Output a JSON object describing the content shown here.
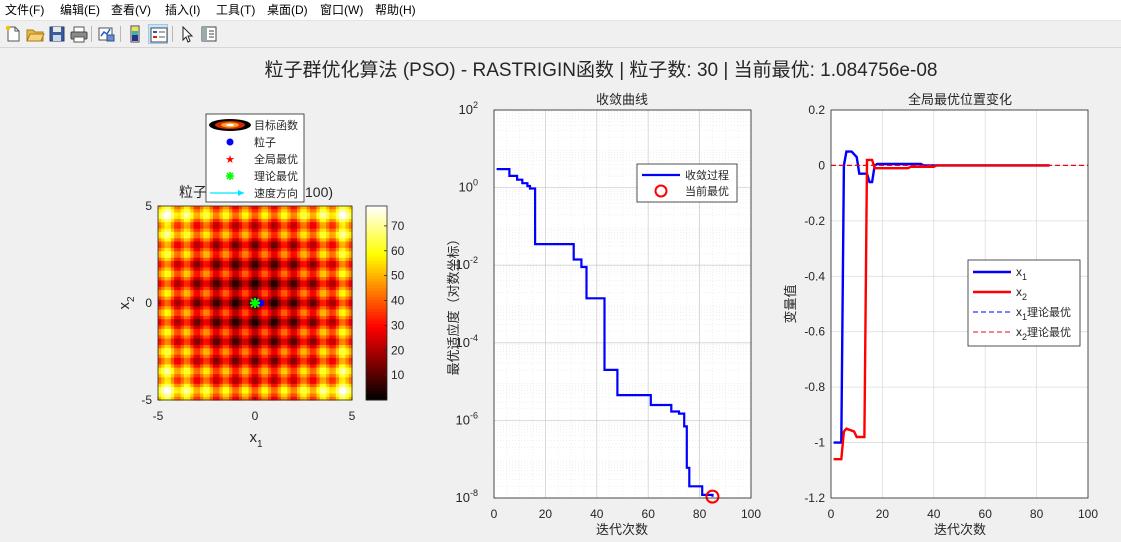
{
  "menu": [
    "文件(F)",
    "编辑(E)",
    "查看(V)",
    "插入(I)",
    "工具(T)",
    "桌面(D)",
    "窗口(W)",
    "帮助(H)"
  ],
  "toolbar_icons": [
    "new-file-icon",
    "open-folder-icon",
    "save-icon",
    "print-icon",
    "link-plot-icon",
    "colorbar-icon",
    "legend-icon",
    "pointer-icon",
    "property-editor-icon"
  ],
  "figure_title": "粒子群优化算法 (PSO) - RASTRIGIN函数 | 粒子数: 30 | 当前最优: 1.084756e-08",
  "plot1": {
    "title_fragment_left": "粒子",
    "title_fragment_right": "100)",
    "xlabel": "x",
    "xlabel_sub": "1",
    "ylabel": "x",
    "ylabel_sub": "2",
    "xticks": [
      "-5",
      "0",
      "5"
    ],
    "yticks": [
      "5",
      "0",
      "-5"
    ],
    "colorbar_ticks": [
      "70",
      "60",
      "50",
      "40",
      "30",
      "20",
      "10"
    ],
    "legend": [
      "目标函数",
      "粒子",
      "全局最优",
      "理论最优",
      "速度方向"
    ]
  },
  "chart_data": [
    {
      "type": "heatmap",
      "title": "",
      "function": "Rastrigin",
      "x_range": [
        -5,
        5
      ],
      "y_range": [
        -5,
        5
      ],
      "color_range": [
        0,
        78
      ],
      "colormap": "hot",
      "particles": [
        [
          0.05,
          0.02
        ],
        [
          0.3,
          0.0
        ]
      ],
      "global_best": [
        0.0,
        0.0
      ],
      "theoretical_best": [
        0.0,
        0.0
      ]
    },
    {
      "type": "line",
      "title": "收敛曲线",
      "xlabel": "迭代次数",
      "ylabel": "最优适应度（对数坐标）",
      "xlim": [
        0,
        100
      ],
      "ylim": [
        1e-08,
        100
      ],
      "yscale": "log",
      "xticks": [
        "0",
        "20",
        "40",
        "60",
        "80",
        "100"
      ],
      "yticks_exp": [
        "2",
        "0",
        "-2",
        "-4",
        "-6",
        "-8"
      ],
      "grid": true,
      "legend_position": "top-right",
      "series": [
        {
          "name": "收敛过程",
          "color": "#0000ff",
          "points": [
            [
              1,
              3
            ],
            [
              5,
              3
            ],
            [
              6,
              2
            ],
            [
              9,
              1.6
            ],
            [
              10,
              1.6
            ],
            [
              11,
              1.3
            ],
            [
              13,
              1.1
            ],
            [
              14,
              0.95
            ],
            [
              15,
              0.95
            ],
            [
              16,
              0.035
            ],
            [
              30,
              0.035
            ],
            [
              31,
              0.014
            ],
            [
              33,
              0.014
            ],
            [
              34,
              0.009
            ],
            [
              36,
              0.0014
            ],
            [
              42,
              0.0014
            ],
            [
              43,
              2e-05
            ],
            [
              47,
              2e-05
            ],
            [
              48,
              4.5e-06
            ],
            [
              60,
              4.5e-06
            ],
            [
              61,
              2.5e-06
            ],
            [
              68,
              2.5e-06
            ],
            [
              69,
              1.7e-06
            ],
            [
              72,
              1.5e-06
            ],
            [
              74,
              7e-07
            ],
            [
              75,
              6e-08
            ],
            [
              76,
              2e-08
            ],
            [
              80,
              2e-08
            ],
            [
              81,
              1.2e-08
            ],
            [
              85,
              1.08e-08
            ]
          ]
        }
      ],
      "current_best": {
        "name": "当前最优",
        "x": 85,
        "y": 1.084756e-08,
        "color": "#ff0000"
      }
    },
    {
      "type": "line",
      "title": "全局最优位置变化",
      "xlabel": "迭代次数",
      "ylabel": "变量值",
      "xlim": [
        0,
        100
      ],
      "ylim": [
        -1.2,
        0.2
      ],
      "xticks": [
        "0",
        "20",
        "40",
        "60",
        "80",
        "100"
      ],
      "yticks": [
        "0.2",
        "0",
        "-0.2",
        "-0.4",
        "-0.6",
        "-0.8",
        "-1",
        "-1.2"
      ],
      "grid": true,
      "legend_position": "right",
      "series": [
        {
          "name": "x",
          "sub": "1",
          "color": "#0000ff",
          "points": [
            [
              1,
              -1.0
            ],
            [
              3,
              -1.0
            ],
            [
              4,
              -1.0
            ],
            [
              5,
              0.0
            ],
            [
              6,
              0.05
            ],
            [
              8,
              0.05
            ],
            [
              10,
              0.03
            ],
            [
              11,
              -0.03
            ],
            [
              14,
              -0.03
            ],
            [
              15,
              -0.06
            ],
            [
              16,
              -0.06
            ],
            [
              17,
              0.0
            ],
            [
              18,
              0.005
            ],
            [
              35,
              0.005
            ],
            [
              36,
              0.0
            ],
            [
              85,
              0.0
            ]
          ]
        },
        {
          "name": "x",
          "sub": "2",
          "color": "#ff0000",
          "points": [
            [
              1,
              -1.06
            ],
            [
              4,
              -1.06
            ],
            [
              5,
              -0.96
            ],
            [
              6,
              -0.95
            ],
            [
              9,
              -0.96
            ],
            [
              10,
              -0.98
            ],
            [
              13,
              -0.98
            ],
            [
              14,
              0.02
            ],
            [
              16,
              0.02
            ],
            [
              17,
              -0.01
            ],
            [
              30,
              -0.01
            ],
            [
              31,
              -0.005
            ],
            [
              40,
              -0.005
            ],
            [
              41,
              0.0
            ],
            [
              85,
              0.0
            ]
          ]
        },
        {
          "name": "x",
          "sub": "1",
          "suffix": "理论最优",
          "color": "#0000ff",
          "dashed": true,
          "points": [
            [
              0,
              0
            ],
            [
              100,
              0
            ]
          ]
        },
        {
          "name": "x",
          "sub": "2",
          "suffix": "理论最优",
          "color": "#ff0000",
          "dashed": true,
          "points": [
            [
              0,
              0
            ],
            [
              100,
              0
            ]
          ]
        }
      ]
    }
  ]
}
